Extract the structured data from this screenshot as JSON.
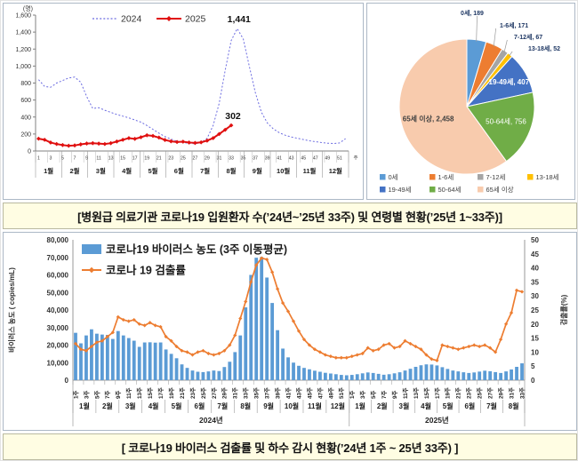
{
  "captions": {
    "top": "[병원급 의료기관 코로나19 입원환자 수(’24년~’25년 33주) 및 연령별 현황(’25년 1~33주)]",
    "bottom": "[ 코로나19 바이러스 검출률 및 하수 감시 현황(’24년 1주 ~ 25년 33주) ]"
  },
  "chart_data": [
    {
      "id": "admissions",
      "type": "line",
      "unit_label": "(명)",
      "ylim": [
        0,
        1600
      ],
      "ytick_step": 200,
      "week_suffix": "주",
      "week_ticks": [
        1,
        3,
        5,
        7,
        9,
        11,
        13,
        15,
        17,
        19,
        21,
        23,
        25,
        27,
        29,
        31,
        33,
        35,
        37,
        39,
        41,
        43,
        45,
        47,
        49,
        51
      ],
      "months": [
        "1월",
        "2월",
        "3월",
        "4월",
        "5월",
        "6월",
        "7월",
        "8월",
        "9월",
        "10월",
        "11월",
        "12월"
      ],
      "series": [
        {
          "name": "2024",
          "color": "#6A6AE0",
          "style": "dotted",
          "values": [
            840,
            760,
            750,
            800,
            830,
            860,
            870,
            810,
            640,
            500,
            510,
            480,
            455,
            430,
            410,
            390,
            365,
            340,
            300,
            255,
            210,
            170,
            140,
            115,
            100,
            90,
            85,
            100,
            150,
            300,
            560,
            950,
            1300,
            1441,
            1320,
            1000,
            690,
            460,
            330,
            260,
            215,
            185,
            165,
            150,
            135,
            120,
            110,
            100,
            92,
            88,
            95,
            145
          ]
        },
        {
          "name": "2025",
          "color": "#E01010",
          "style": "solid-marker",
          "values": [
            145,
            132,
            100,
            82,
            70,
            62,
            66,
            78,
            88,
            92,
            87,
            82,
            92,
            112,
            132,
            152,
            143,
            162,
            185,
            178,
            158,
            130,
            114,
            106,
            110,
            100,
            95,
            102,
            122,
            152,
            200,
            250,
            302
          ]
        }
      ],
      "annotations": [
        {
          "text": "1,441",
          "series": 0,
          "index": 33
        },
        {
          "text": "302",
          "series": 1,
          "index": 32
        }
      ]
    },
    {
      "id": "age-pie",
      "type": "pie",
      "slices": [
        {
          "label": "0세",
          "value": 189,
          "color": "#5B9BD5"
        },
        {
          "label": "1-6세",
          "value": 171,
          "color": "#ED7D31"
        },
        {
          "label": "7-12세",
          "value": 67,
          "color": "#A5A5A5"
        },
        {
          "label": "13-18세",
          "value": 52,
          "color": "#FFC000"
        },
        {
          "label": "19-49세",
          "value": 407,
          "color": "#4472C4"
        },
        {
          "label": "50-64세",
          "value": 756,
          "color": "#70AD47"
        },
        {
          "label": "65세 이상",
          "value": 2458,
          "color": "#F8CBAD"
        }
      ]
    },
    {
      "id": "wastewater",
      "type": "bar+line",
      "bar_legend": "코로나19 바이러스 농도 (3주 이동평균)",
      "line_legend": "코로나 19 검출률",
      "left_axis": {
        "label": "바이러스 농도 ( copies/mL)",
        "min": 0,
        "max": 80000,
        "step": 10000
      },
      "right_axis": {
        "label": "검출률(%)",
        "min": 0,
        "max": 50,
        "step": 5
      },
      "week_suffix": "주",
      "groups": [
        {
          "year": "2024년",
          "months": [
            "1월",
            "2월",
            "3월",
            "4월",
            "5월",
            "6월",
            "7월",
            "8월",
            "9월",
            "10월",
            "11월",
            "12월"
          ],
          "weeks": 52,
          "week_ticks": [
            1,
            3,
            5,
            7,
            9,
            11,
            13,
            15,
            17,
            19,
            21,
            23,
            25,
            27,
            29,
            31,
            33,
            35,
            37,
            39,
            41,
            43,
            45,
            47,
            49,
            51
          ]
        },
        {
          "year": "2025년",
          "months": [
            "1월",
            "2월",
            "3월",
            "4월",
            "5월",
            "6월",
            "7월",
            "8월"
          ],
          "weeks": 33,
          "week_ticks": [
            1,
            3,
            5,
            7,
            9,
            11,
            13,
            15,
            17,
            19,
            21,
            23,
            25,
            27,
            29,
            31,
            33
          ]
        }
      ],
      "bars": {
        "color": "#5B9BD5",
        "values": [
          27000,
          21000,
          25500,
          29000,
          26500,
          26000,
          25800,
          23500,
          28000,
          25500,
          24000,
          22500,
          19000,
          21500,
          21600,
          21400,
          21500,
          17500,
          15000,
          12500,
          9000,
          7000,
          5500,
          4800,
          4600,
          5000,
          5500,
          5200,
          7500,
          10500,
          16000,
          25500,
          41500,
          60000,
          69800,
          70200,
          58500,
          44000,
          28500,
          18000,
          13000,
          10000,
          8200,
          7000,
          6200,
          5400,
          4800,
          4200,
          3800,
          3400,
          3000,
          2800,
          3000,
          3400,
          3900,
          4400,
          4100,
          3600,
          3100,
          3400,
          3900,
          4500,
          5500,
          6500,
          7600,
          8500,
          9000,
          8900,
          8400,
          7400,
          6400,
          5500,
          5000,
          4500,
          4100,
          4400,
          4900,
          5400,
          5100,
          4600,
          4100,
          5000,
          6100,
          7600,
          9600
        ]
      },
      "line": {
        "color": "#ED7D31",
        "values": [
          13,
          11,
          10.5,
          12,
          13.5,
          14,
          15.5,
          17,
          22.5,
          21.5,
          21,
          21.5,
          20,
          19.5,
          20.5,
          19.5,
          19,
          15.5,
          14,
          12,
          10.5,
          10,
          9,
          10,
          10.5,
          9.5,
          9,
          9.5,
          10.5,
          12.5,
          16,
          22,
          28,
          35,
          41,
          43.5,
          43,
          38.5,
          32.5,
          27.5,
          24.5,
          21,
          17.5,
          14.5,
          12.5,
          11,
          10,
          9,
          8.5,
          8,
          8,
          8,
          8.5,
          9,
          9.5,
          11.5,
          10.5,
          11,
          12.5,
          13,
          11.5,
          12,
          14,
          13,
          12,
          11,
          9,
          7.5,
          7,
          12.5,
          12,
          11.5,
          11,
          11.5,
          12,
          12.5,
          12,
          12.5,
          11.5,
          10,
          14.5,
          20,
          24,
          32,
          31.5
        ]
      }
    }
  ]
}
